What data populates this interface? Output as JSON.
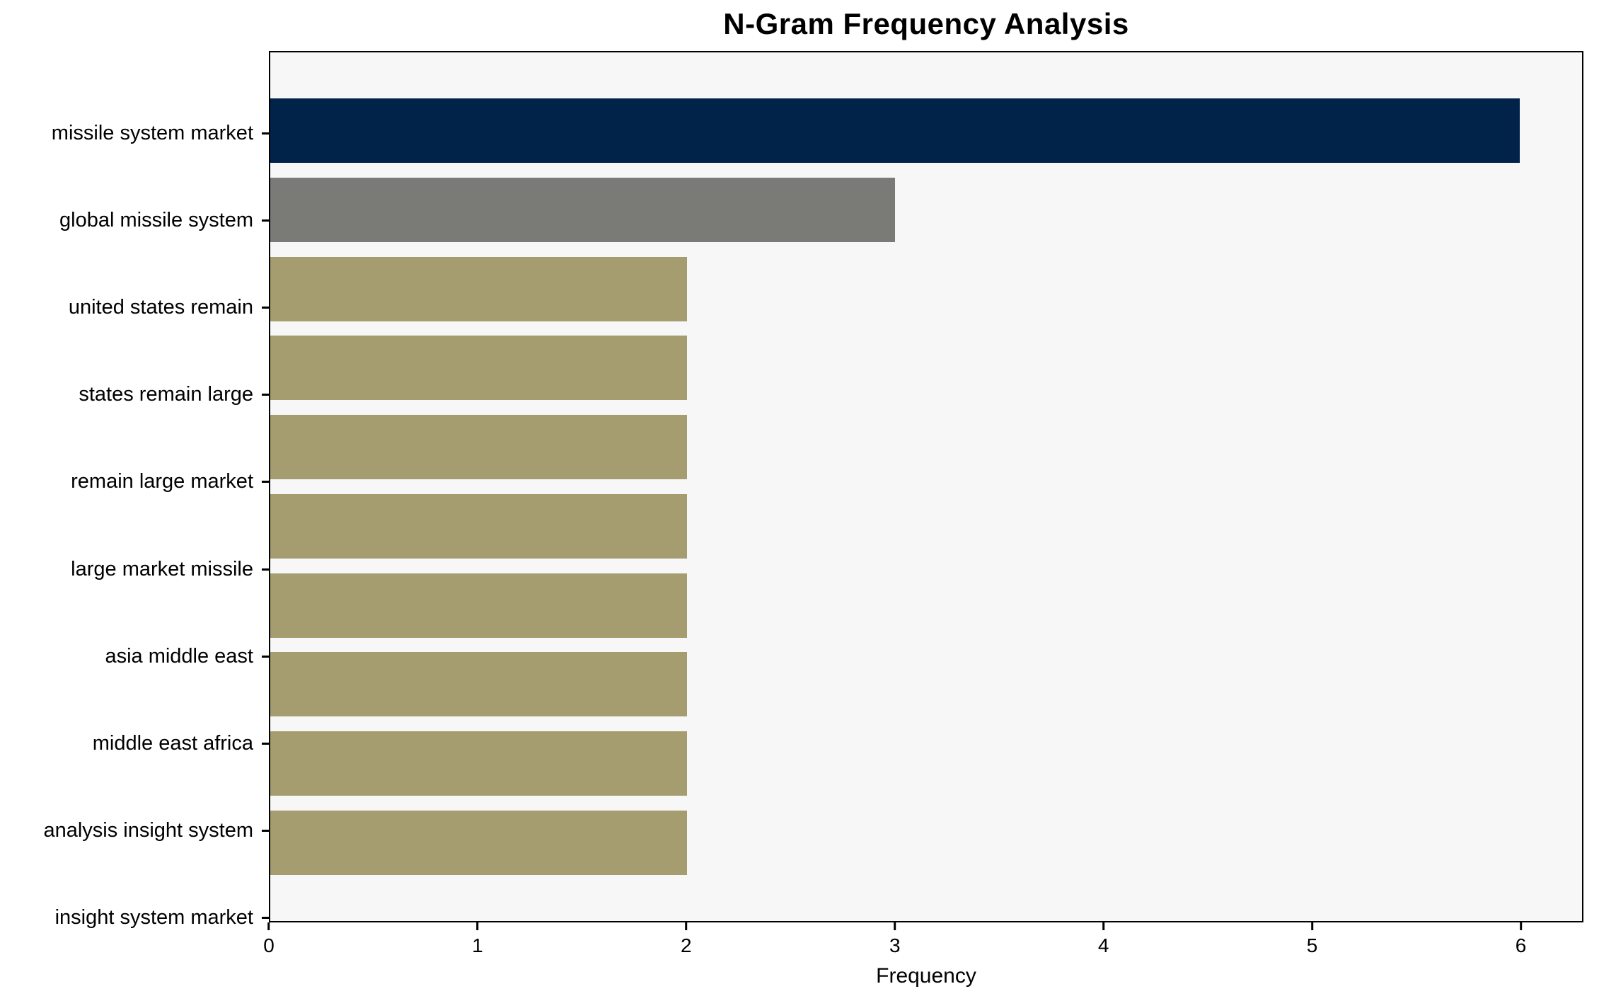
{
  "title": "N-Gram Frequency Analysis",
  "chart_data": {
    "type": "bar",
    "orientation": "horizontal",
    "title": "N-Gram Frequency Analysis",
    "xlabel": "Frequency",
    "ylabel": "",
    "categories": [
      "missile system market",
      "global missile system",
      "united states remain",
      "states remain large",
      "remain large market",
      "large market missile",
      "asia middle east",
      "middle east africa",
      "analysis insight system",
      "insight system market"
    ],
    "values": [
      6,
      3,
      2,
      2,
      2,
      2,
      2,
      2,
      2,
      2
    ],
    "bar_colors": [
      "#022349",
      "#7a7a76",
      "#a59c6f",
      "#a59c6f",
      "#a59c6f",
      "#a59c6f",
      "#a59c6f",
      "#a59c6f",
      "#a59c6f",
      "#a59c6f"
    ],
    "xlim": [
      0,
      6.3
    ],
    "xticks": [
      0,
      1,
      2,
      3,
      4,
      5,
      6
    ],
    "grid": false,
    "legend": null,
    "plot_background": "#f7f7f7",
    "figure_background": "#ffffff",
    "bar_height_frac": 0.81
  }
}
